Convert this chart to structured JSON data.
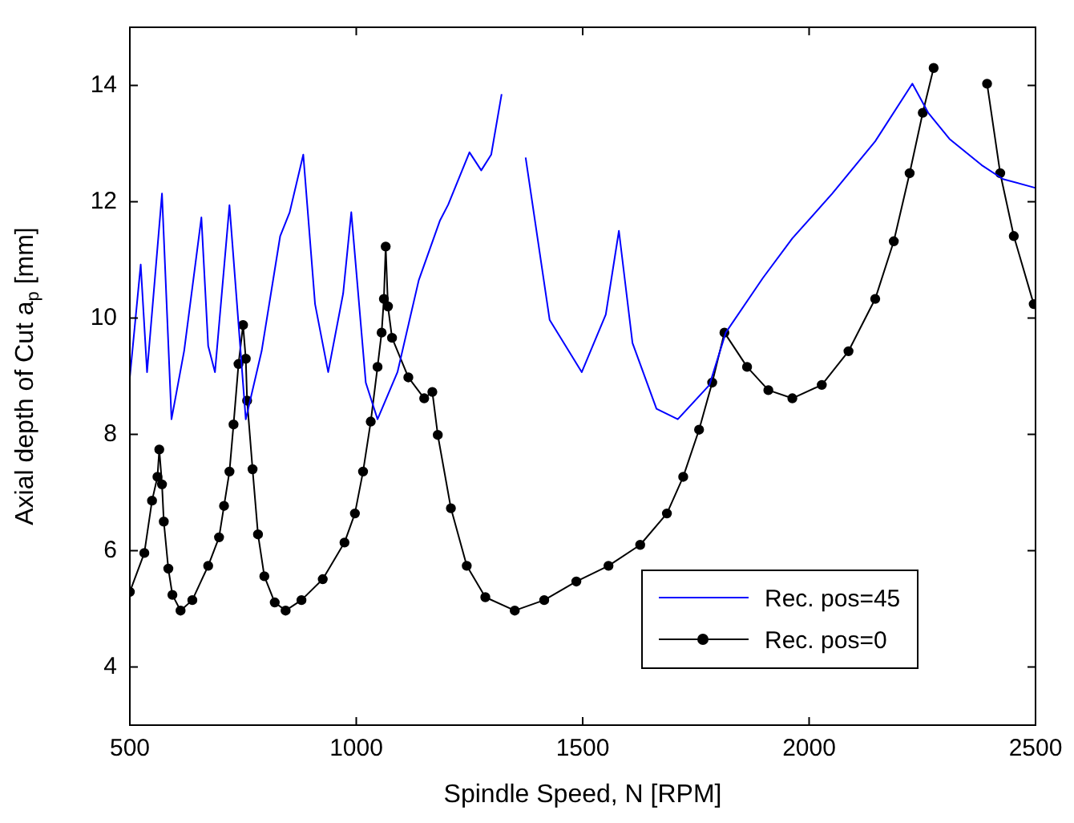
{
  "chart_data": {
    "type": "line",
    "xlabel": "Spindle Speed, N [RPM]",
    "ylabel": "Axial depth of Cut a$_{p}$ [mm]",
    "xlim": [
      500,
      2500
    ],
    "xticks": [
      500,
      1000,
      1500,
      2000,
      2500
    ],
    "ylim": [
      3,
      15
    ],
    "yticks": [
      4,
      6,
      8,
      10,
      12,
      14
    ],
    "grid": false,
    "legend": "bottom right",
    "series": [
      {
        "name": "Rec. pos=45",
        "color": "#0000ff",
        "marker": "none",
        "x": [
          500,
          524,
          538,
          571,
          592,
          620,
          658,
          673,
          688,
          720,
          756,
          791,
          832,
          853,
          883,
          909,
          938,
          971,
          989,
          1021,
          1047,
          1091,
          1138,
          1185,
          1203,
          1250,
          1276,
          1298,
          1321,
          1335,
          1350,
          1374,
          1427,
          1498,
          1551,
          1580,
          1610,
          1663,
          1710,
          1780,
          1816,
          1898,
          1963,
          2051,
          2146,
          2228,
          2263,
          2310,
          2381,
          2428,
          2499
        ],
        "values": [
          8.98,
          10.92,
          9.07,
          12.14,
          8.26,
          9.44,
          11.73,
          9.52,
          9.07,
          11.94,
          8.26,
          9.43,
          11.41,
          11.82,
          12.81,
          10.24,
          9.07,
          10.42,
          11.82,
          8.89,
          8.26,
          9.07,
          10.65,
          11.68,
          11.95,
          12.85,
          12.54,
          12.81,
          13.85,
          null,
          null,
          12.76,
          9.97,
          9.07,
          10.06,
          11.5,
          9.57,
          8.44,
          8.26,
          8.85,
          9.75,
          10.69,
          11.37,
          12.14,
          13.04,
          14.03,
          13.53,
          13.08,
          12.63,
          12.39,
          12.24
        ]
      },
      {
        "name": "Rec. pos=0",
        "color": "#000000",
        "marker": "circle",
        "x": [
          500,
          532,
          549,
          561,
          565,
          571,
          575,
          585,
          594,
          612,
          638,
          673,
          697,
          708,
          720,
          729,
          740,
          750,
          756,
          759,
          771,
          783,
          797,
          820,
          844,
          879,
          926,
          974,
          997,
          1015,
          1032,
          1047,
          1056,
          1061,
          1065,
          1070,
          1079,
          1115,
          1150,
          1168,
          1180,
          1209,
          1244,
          1285,
          1350,
          1415,
          1486,
          1557,
          1627,
          1686,
          1722,
          1757,
          1786,
          1813,
          1863,
          1910,
          1963,
          2028,
          2087,
          2146,
          2187,
          2222,
          2251,
          2275,
          2298,
          2369,
          2393,
          2422,
          2452,
          2496
        ],
        "values": [
          5.29,
          5.96,
          6.86,
          7.27,
          7.74,
          7.14,
          6.5,
          5.69,
          5.24,
          4.97,
          5.15,
          5.74,
          6.23,
          6.77,
          7.36,
          8.17,
          9.21,
          9.88,
          9.3,
          8.58,
          7.4,
          6.28,
          5.56,
          5.11,
          4.97,
          5.15,
          5.51,
          6.14,
          6.64,
          7.36,
          8.22,
          9.16,
          9.75,
          10.33,
          11.23,
          10.2,
          9.66,
          8.98,
          8.62,
          8.73,
          7.99,
          6.73,
          5.74,
          5.2,
          4.97,
          5.15,
          5.47,
          5.74,
          6.1,
          6.64,
          7.27,
          8.08,
          8.89,
          9.75,
          9.16,
          8.76,
          8.62,
          8.85,
          9.43,
          10.33,
          11.32,
          12.49,
          13.53,
          14.3,
          null,
          null,
          14.03,
          12.49,
          11.41,
          10.24
        ]
      }
    ]
  }
}
